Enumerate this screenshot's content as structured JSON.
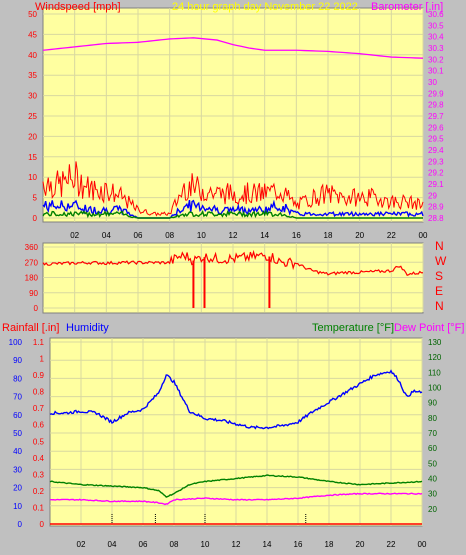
{
  "header": {
    "left_label": "Windspeed [mph]",
    "center_label": "24 hour graph day   November 22 2022",
    "right_label": "Barometer [.in]"
  },
  "colors": {
    "background": "#c0c0c0",
    "plot_bg": "#ffffa0",
    "grid": "#d8d8a0",
    "red": "#ff0000",
    "blue": "#0000ff",
    "green": "#008000",
    "magenta": "#ff00ff",
    "yellow_title": "#ffff00",
    "dark_green_axis": "#006400"
  },
  "x_ticks": [
    "02",
    "04",
    "06",
    "08",
    "10",
    "12",
    "14",
    "16",
    "18",
    "20",
    "22",
    "00"
  ],
  "chart_data": [
    {
      "type": "line",
      "panel": "wind_barometer",
      "xlabel": "",
      "ylabel": "Windspeed [mph]",
      "y2label": "Barometer [.in]",
      "ylim": [
        0,
        50
      ],
      "y_ticks": [
        "0",
        "5",
        "10",
        "15",
        "20",
        "25",
        "30",
        "35",
        "40",
        "45",
        "50"
      ],
      "y2lim": [
        28.8,
        30.6
      ],
      "y2_ticks": [
        "28.8",
        "28.9",
        "29",
        "29.1",
        "29.2",
        "29.3",
        "29.4",
        "29.5",
        "29.6",
        "29.7",
        "29.8",
        "29.9",
        "30",
        "30.1",
        "30.2",
        "30.3",
        "30.4",
        "30.5",
        "30.6"
      ],
      "series": [
        {
          "name": "Barometer [.in]",
          "axis": "y2",
          "x": [
            0,
            2,
            4,
            6,
            8,
            9.5,
            11,
            12,
            13,
            14,
            16,
            18,
            20,
            22,
            24
          ],
          "y": [
            30.28,
            30.31,
            30.34,
            30.35,
            30.38,
            30.39,
            30.37,
            30.33,
            30.3,
            30.28,
            30.28,
            30.27,
            30.25,
            30.22,
            30.21
          ]
        },
        {
          "name": "Wind gust",
          "axis": "y",
          "x": [
            0,
            1,
            2,
            3,
            4,
            5,
            6,
            7,
            8,
            9,
            10,
            11,
            12,
            13,
            14,
            15,
            16,
            17,
            18,
            19,
            20,
            21,
            22,
            23,
            24
          ],
          "y": [
            9,
            8,
            10,
            7,
            7,
            5,
            2,
            1,
            1,
            8,
            7,
            6,
            6,
            6,
            6,
            7,
            3,
            5,
            6,
            5,
            5,
            5,
            4,
            4,
            3
          ]
        },
        {
          "name": "Wind average",
          "axis": "y",
          "x": [
            0,
            1,
            2,
            3,
            4,
            5,
            6,
            7,
            8,
            9,
            10,
            11,
            12,
            13,
            14,
            15,
            16,
            17,
            18,
            19,
            20,
            21,
            22,
            23,
            24
          ],
          "y": [
            3,
            3,
            3,
            2,
            2,
            2,
            0,
            0,
            0,
            3,
            3,
            2,
            2,
            2,
            2,
            3,
            1,
            1,
            1,
            1,
            1,
            1,
            1,
            1,
            1
          ]
        },
        {
          "name": "Wind low",
          "axis": "y",
          "x": [
            0,
            1,
            2,
            3,
            4,
            5,
            6,
            7,
            8,
            9,
            10,
            11,
            12,
            13,
            14,
            15,
            16,
            17,
            18,
            19,
            20,
            21,
            22,
            23,
            24
          ],
          "y": [
            1,
            1,
            1,
            1,
            1,
            1,
            0,
            0,
            0,
            1,
            1,
            1,
            1,
            1,
            1,
            1,
            0,
            0,
            0,
            0,
            0,
            0,
            0,
            0,
            0
          ]
        }
      ]
    },
    {
      "type": "line",
      "panel": "wind_direction",
      "ylabel": "",
      "ylim": [
        0,
        360
      ],
      "y_ticks": [
        "0",
        "90",
        "180",
        "270",
        "360"
      ],
      "compass": [
        "N",
        "W",
        "S",
        "E",
        "N"
      ],
      "series": [
        {
          "name": "Wind direction",
          "x": [
            0,
            1,
            2,
            3,
            4,
            5,
            6,
            7,
            8,
            8.5,
            9,
            9.5,
            10,
            10.5,
            11,
            12,
            13,
            14,
            14.5,
            15,
            16,
            16.5,
            17,
            18,
            19,
            20,
            21,
            22,
            22.5,
            23,
            24
          ],
          "y": [
            260,
            262,
            265,
            268,
            265,
            268,
            268,
            268,
            268,
            300,
            310,
            280,
            300,
            300,
            290,
            290,
            300,
            310,
            300,
            270,
            265,
            240,
            220,
            200,
            210,
            210,
            215,
            220,
            250,
            200,
            210
          ]
        }
      ],
      "spikes_to_zero_at_hours": [
        9.5,
        10.2,
        14.3
      ]
    },
    {
      "type": "line",
      "panel": "humidity_temperature",
      "legend": [
        "Rainfall [.in]",
        "Humidity",
        "Temperature [°F]",
        "Dew Point [°F]"
      ],
      "ylim_humidity": [
        0,
        100
      ],
      "humidity_ticks": [
        "0",
        "10",
        "20",
        "30",
        "40",
        "50",
        "60",
        "70",
        "80",
        "90",
        "100"
      ],
      "ylim_rain": [
        0,
        1.1
      ],
      "rain_ticks": [
        "0",
        "0.1",
        "0.2",
        "0.3",
        "0.4",
        "0.5",
        "0.6",
        "0.7",
        "0.8",
        "0.9",
        "1",
        "1.1"
      ],
      "ylim_temp": [
        10,
        130
      ],
      "temp_ticks": [
        "20",
        "30",
        "40",
        "50",
        "60",
        "70",
        "80",
        "90",
        "100",
        "110",
        "120",
        "130"
      ],
      "series": [
        {
          "name": "Humidity",
          "axis": "humidity",
          "x": [
            0,
            1,
            2,
            3,
            4,
            5,
            6,
            7,
            7.5,
            8,
            9,
            10,
            11,
            12,
            13,
            14,
            15,
            16,
            17,
            18,
            19,
            20,
            21,
            22,
            22.5,
            23,
            23.5,
            24
          ],
          "y": [
            61,
            61,
            62,
            61,
            56,
            61,
            63,
            72,
            82,
            78,
            62,
            58,
            57,
            55,
            53,
            53,
            54,
            56,
            62,
            67,
            72,
            77,
            82,
            84,
            79,
            70,
            73,
            72
          ]
        },
        {
          "name": "Temperature [°F]",
          "axis": "temp",
          "x": [
            0,
            2,
            4,
            6,
            7,
            7.5,
            8,
            9,
            10,
            12,
            14,
            16,
            18,
            20,
            22,
            24
          ],
          "y": [
            38,
            36,
            35,
            34,
            32,
            28,
            30,
            36,
            38,
            40,
            42,
            41,
            38,
            36,
            37,
            38
          ]
        },
        {
          "name": "Dew Point [°F]",
          "axis": "temp",
          "x": [
            0,
            2,
            4,
            6,
            7,
            7.5,
            8,
            10,
            12,
            14,
            16,
            18,
            20,
            22,
            24
          ],
          "y": [
            26,
            26,
            25,
            25,
            24,
            23,
            26,
            27,
            26,
            26,
            27,
            29,
            30,
            30,
            30
          ]
        },
        {
          "name": "Rainfall [.in]",
          "axis": "rain",
          "x": [
            0,
            24
          ],
          "y": [
            0,
            0
          ]
        }
      ],
      "rain_marks_at_hours": [
        4,
        6.8,
        10,
        16.5
      ]
    }
  ]
}
